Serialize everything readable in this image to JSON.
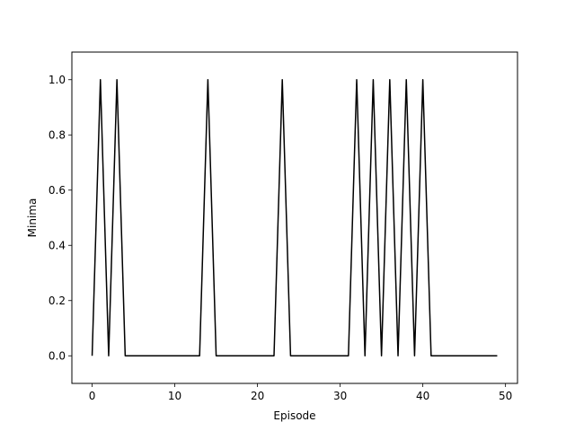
{
  "chart_data": {
    "type": "line",
    "title": "",
    "xlabel": "Episode",
    "ylabel": "Minima",
    "xlim": [
      -2.45,
      51.45
    ],
    "ylim": [
      -0.1,
      1.1
    ],
    "xticks": [
      0,
      10,
      20,
      30,
      40,
      50
    ],
    "xtick_labels": [
      "0",
      "10",
      "20",
      "30",
      "40",
      "50"
    ],
    "yticks": [
      0.0,
      0.2,
      0.4,
      0.6,
      0.8,
      1.0
    ],
    "ytick_labels": [
      "0.0",
      "0.2",
      "0.4",
      "0.6",
      "0.8",
      "1.0"
    ],
    "grid": false,
    "legend": false,
    "series": [
      {
        "color": "#000000",
        "x": [
          0,
          1,
          2,
          3,
          4,
          5,
          6,
          7,
          8,
          9,
          10,
          11,
          12,
          13,
          14,
          15,
          16,
          17,
          18,
          19,
          20,
          21,
          22,
          23,
          24,
          25,
          26,
          27,
          28,
          29,
          30,
          31,
          32,
          33,
          34,
          35,
          36,
          37,
          38,
          39,
          40,
          41,
          42,
          43,
          44,
          45,
          46,
          47,
          48,
          49
        ],
        "y": [
          0,
          1,
          0,
          1,
          0,
          0,
          0,
          0,
          0,
          0,
          0,
          0,
          0,
          0,
          1,
          0,
          0,
          0,
          0,
          0,
          0,
          0,
          0,
          1,
          0,
          0,
          0,
          0,
          0,
          0,
          0,
          0,
          1,
          0,
          1,
          0,
          1,
          0,
          1,
          0,
          1,
          0,
          0,
          0,
          0,
          0,
          0,
          0,
          0,
          0
        ]
      }
    ]
  }
}
